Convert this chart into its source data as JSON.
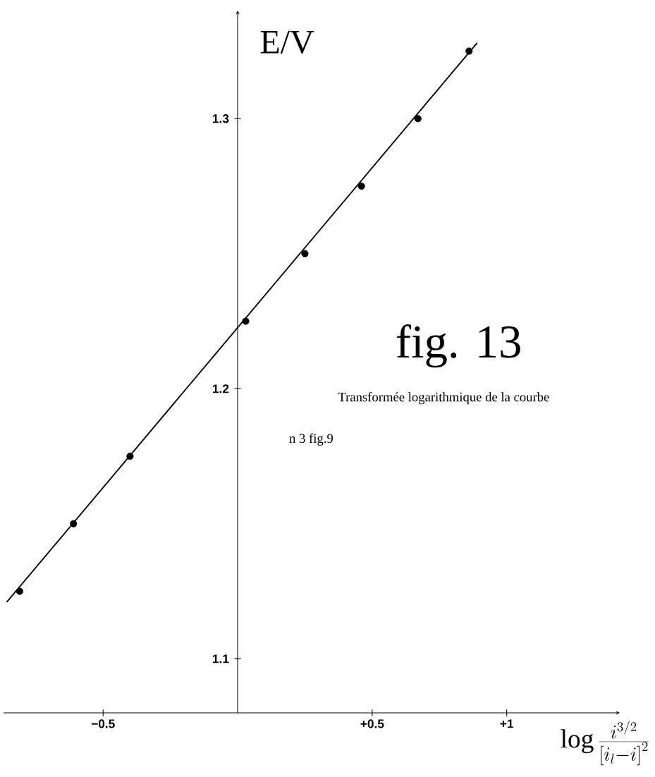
{
  "chart_data": {
    "type": "scatter",
    "title": "fig. 13",
    "xlabel": "\\log \\frac{i^{3/2}}{\\left[i_{l} - i\\right]^{2}}",
    "ylabel": "E/V",
    "annotations": [
      "Transformée logarithmique de la courbe",
      "n 3 fig.9"
    ],
    "xlim": [
      -0.87,
      1.42
    ],
    "ylim": [
      1.08,
      1.34
    ],
    "xticks": [
      {
        "value": -0.5,
        "label": "−0.5"
      },
      {
        "value": 0.5,
        "label": "+0.5"
      },
      {
        "value": 1,
        "label": "+1"
      }
    ],
    "yticks": [
      1.1,
      1.2,
      1.3
    ],
    "grid": false,
    "series": [
      {
        "marker": "circle",
        "color": "#000000",
        "x": [
          -0.81,
          -0.61,
          -0.4,
          0.03,
          0.25,
          0.46,
          0.67,
          0.86
        ],
        "values": [
          1.125,
          1.15,
          1.175,
          1.225,
          1.25,
          1.275,
          1.3,
          1.325
        ]
      },
      {
        "type": "line",
        "marker": "none",
        "color": "#000000",
        "x": [
          -0.858,
          0.89
        ],
        "values": [
          1.121,
          1.328
        ]
      }
    ]
  }
}
